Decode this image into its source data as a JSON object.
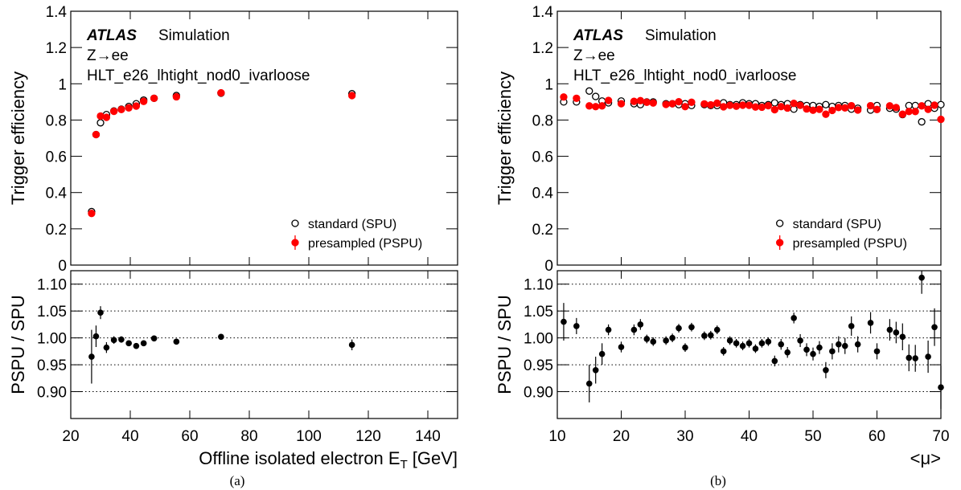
{
  "captions": [
    "(a)",
    "(b)"
  ],
  "chart_data": [
    {
      "type": "scatter",
      "ylabel": "Trigger efficiency",
      "annotations": [
        "ATLAS",
        "Simulation",
        "Z→ee",
        "HLT_e26_lhtight_nod0_ivarloose"
      ],
      "xlim": [
        20,
        150
      ],
      "xticks": [
        20,
        40,
        60,
        80,
        100,
        120,
        140
      ],
      "show_xticklabels": false,
      "ylim": [
        0,
        1.4
      ],
      "yticks": [
        0,
        0.2,
        0.4,
        0.6,
        0.8,
        1,
        1.2,
        1.4
      ],
      "legend": "lower right",
      "x": [
        27,
        28.5,
        30,
        32,
        34.5,
        37,
        39.5,
        42,
        44.5,
        48,
        55.5,
        70.5,
        114.5
      ],
      "series": [
        {
          "name": "standard (SPU)",
          "color": "#000000",
          "marker": "open",
          "values": [
            0.295,
            0.72,
            0.785,
            0.83,
            0.85,
            0.86,
            0.875,
            0.89,
            0.91,
            0.92,
            0.935,
            0.948,
            0.945
          ]
        },
        {
          "name": "presampled (PSPU)",
          "color": "#ff0000",
          "marker": "filled",
          "values": [
            0.285,
            0.72,
            0.822,
            0.815,
            0.848,
            0.858,
            0.867,
            0.877,
            0.903,
            0.92,
            0.928,
            0.95,
            0.935
          ]
        }
      ]
    },
    {
      "type": "errorbar",
      "ylabel": "PSPU / SPU",
      "xlabel_parts": [
        "Offline isolated electron E",
        "T",
        "[GeV]"
      ],
      "xlim": [
        20,
        150
      ],
      "xticks": [
        20,
        40,
        60,
        80,
        100,
        120,
        140
      ],
      "show_xticklabels": true,
      "ylim": [
        0.85,
        1.125
      ],
      "yticks": [
        {
          "value": 0.9,
          "label": "0.90"
        },
        {
          "value": 0.95,
          "label": "0.95"
        },
        {
          "value": 1,
          "label": "1.00"
        },
        {
          "value": 1.05,
          "label": "1.05"
        },
        {
          "value": 1.1,
          "label": "1.10"
        }
      ],
      "grid": true,
      "x": [
        27,
        28.5,
        30,
        32,
        34.5,
        37,
        39.5,
        42,
        44.5,
        48,
        55.5,
        70.5,
        114.5
      ],
      "values": [
        0.965,
        1.003,
        1.047,
        0.982,
        0.996,
        0.997,
        0.99,
        0.985,
        0.99,
        0.999,
        0.993,
        1.002,
        0.987
      ],
      "errors": [
        0.05,
        0.02,
        0.012,
        0.01,
        0.007,
        0.006,
        0.005,
        0.005,
        0.005,
        0.004,
        0.004,
        0.004,
        0.01
      ]
    },
    {
      "type": "scatter",
      "ylabel": "Trigger efficiency",
      "annotations": [
        "ATLAS",
        "Simulation",
        "Z→ee",
        "HLT_e26_lhtight_nod0_ivarloose"
      ],
      "xlim": [
        10,
        70
      ],
      "xticks": [
        10,
        20,
        30,
        40,
        50,
        60,
        70
      ],
      "show_xticklabels": false,
      "ylim": [
        0,
        1.4
      ],
      "yticks": [
        0,
        0.2,
        0.4,
        0.6,
        0.8,
        1,
        1.2,
        1.4
      ],
      "legend": "lower right",
      "x": [
        11,
        13,
        15,
        16,
        17,
        18,
        20,
        22,
        23,
        24,
        25,
        27,
        28,
        29,
        30,
        31,
        33,
        34,
        35,
        36,
        37,
        38,
        39,
        40,
        41,
        42,
        43,
        44,
        45,
        46,
        47,
        48,
        49,
        50,
        51,
        52,
        53,
        54,
        55,
        56,
        57,
        59,
        60,
        62,
        63,
        64,
        65,
        66,
        67,
        68,
        69,
        70
      ],
      "series": [
        {
          "name": "standard (SPU)",
          "color": "#000000",
          "marker": "open",
          "values": [
            0.9,
            0.9,
            0.96,
            0.93,
            0.905,
            0.895,
            0.905,
            0.89,
            0.885,
            0.9,
            0.9,
            0.89,
            0.89,
            0.885,
            0.89,
            0.88,
            0.885,
            0.88,
            0.88,
            0.895,
            0.885,
            0.885,
            0.895,
            0.89,
            0.89,
            0.88,
            0.885,
            0.895,
            0.885,
            0.89,
            0.86,
            0.885,
            0.88,
            0.88,
            0.875,
            0.885,
            0.875,
            0.88,
            0.88,
            0.86,
            0.865,
            0.855,
            0.88,
            0.865,
            0.86,
            0.83,
            0.88,
            0.88,
            0.79,
            0.89,
            0.865,
            0.885
          ]
        },
        {
          "name": "presampled (PSPU)",
          "color": "#ff0000",
          "marker": "filled",
          "values": [
            0.927,
            0.92,
            0.878,
            0.874,
            0.878,
            0.908,
            0.89,
            0.903,
            0.907,
            0.898,
            0.894,
            0.886,
            0.89,
            0.901,
            0.874,
            0.898,
            0.889,
            0.884,
            0.893,
            0.873,
            0.881,
            0.876,
            0.882,
            0.881,
            0.872,
            0.871,
            0.879,
            0.857,
            0.874,
            0.866,
            0.892,
            0.881,
            0.861,
            0.854,
            0.859,
            0.832,
            0.853,
            0.869,
            0.867,
            0.879,
            0.855,
            0.879,
            0.858,
            0.878,
            0.869,
            0.832,
            0.847,
            0.847,
            0.878,
            0.859,
            0.882,
            0.804
          ]
        }
      ]
    },
    {
      "type": "errorbar",
      "ylabel": "PSPU / SPU",
      "xlabel_parts": [
        "<μ>"
      ],
      "xlim": [
        10,
        70
      ],
      "xticks": [
        10,
        20,
        30,
        40,
        50,
        60,
        70
      ],
      "show_xticklabels": true,
      "ylim": [
        0.85,
        1.125
      ],
      "yticks": [
        {
          "value": 0.9,
          "label": "0.90"
        },
        {
          "value": 0.95,
          "label": "0.95"
        },
        {
          "value": 1,
          "label": "1.00"
        },
        {
          "value": 1.05,
          "label": "1.05"
        },
        {
          "value": 1.1,
          "label": "1.10"
        }
      ],
      "grid": true,
      "x": [
        11,
        13,
        15,
        16,
        17,
        18,
        20,
        22,
        23,
        24,
        25,
        27,
        28,
        29,
        30,
        31,
        33,
        34,
        35,
        36,
        37,
        38,
        39,
        40,
        41,
        42,
        43,
        44,
        45,
        46,
        47,
        48,
        49,
        50,
        51,
        52,
        53,
        54,
        55,
        56,
        57,
        59,
        60,
        62,
        63,
        64,
        65,
        66,
        67,
        68,
        69,
        70
      ],
      "values": [
        1.03,
        1.022,
        0.915,
        0.94,
        0.97,
        1.015,
        0.983,
        1.015,
        1.025,
        0.998,
        0.993,
        0.995,
        1.0,
        1.018,
        0.982,
        1.02,
        1.004,
        1.005,
        1.015,
        0.975,
        0.995,
        0.99,
        0.985,
        0.99,
        0.98,
        0.99,
        0.993,
        0.957,
        0.988,
        0.973,
        1.037,
        0.995,
        0.978,
        0.97,
        0.982,
        0.94,
        0.975,
        0.988,
        0.985,
        1.022,
        0.988,
        1.028,
        0.975,
        1.015,
        1.01,
        1.002,
        0.963,
        0.962,
        1.112,
        0.965,
        1.02,
        0.908
      ],
      "errors": [
        0.035,
        0.015,
        0.035,
        0.025,
        0.02,
        0.01,
        0.01,
        0.01,
        0.01,
        0.008,
        0.008,
        0.008,
        0.008,
        0.008,
        0.008,
        0.008,
        0.008,
        0.008,
        0.008,
        0.008,
        0.008,
        0.008,
        0.008,
        0.008,
        0.008,
        0.008,
        0.008,
        0.01,
        0.01,
        0.01,
        0.01,
        0.012,
        0.012,
        0.012,
        0.012,
        0.015,
        0.015,
        0.015,
        0.015,
        0.018,
        0.015,
        0.02,
        0.015,
        0.02,
        0.02,
        0.025,
        0.025,
        0.025,
        0.03,
        0.03,
        0.035,
        0.04
      ]
    }
  ]
}
